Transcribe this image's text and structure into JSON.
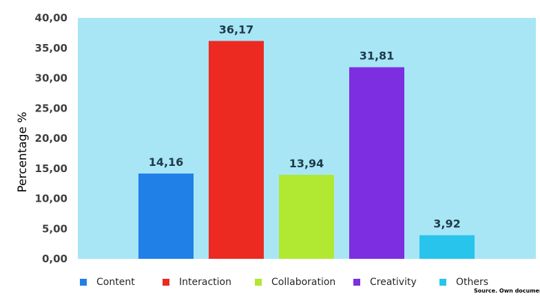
{
  "chart_data": {
    "type": "bar",
    "categories": [
      "Content",
      "Interaction",
      "Collaboration",
      "Creativity",
      "Others"
    ],
    "values": [
      14.16,
      36.17,
      13.94,
      31.81,
      3.92
    ],
    "value_labels": [
      "14,16",
      "36,17",
      "13,94",
      "31,81",
      "3,92"
    ],
    "colors": [
      "#2080e8",
      "#ec2a22",
      "#b0e832",
      "#7c2ee0",
      "#28c4ec"
    ],
    "plot_background": "#a8e6f6",
    "ylabel": "Percentage %",
    "ylim": [
      0,
      40
    ],
    "yticks": [
      "0,00",
      "5,00",
      "10,00",
      "15,00",
      "20,00",
      "25,00",
      "30,00",
      "35,00",
      "40,00"
    ],
    "legend": [
      "Content",
      "Interaction",
      "Collaboration",
      "Creativity",
      "Others"
    ],
    "legend_position": "bottom",
    "grid": false
  },
  "source_note": "Source. Own documen"
}
